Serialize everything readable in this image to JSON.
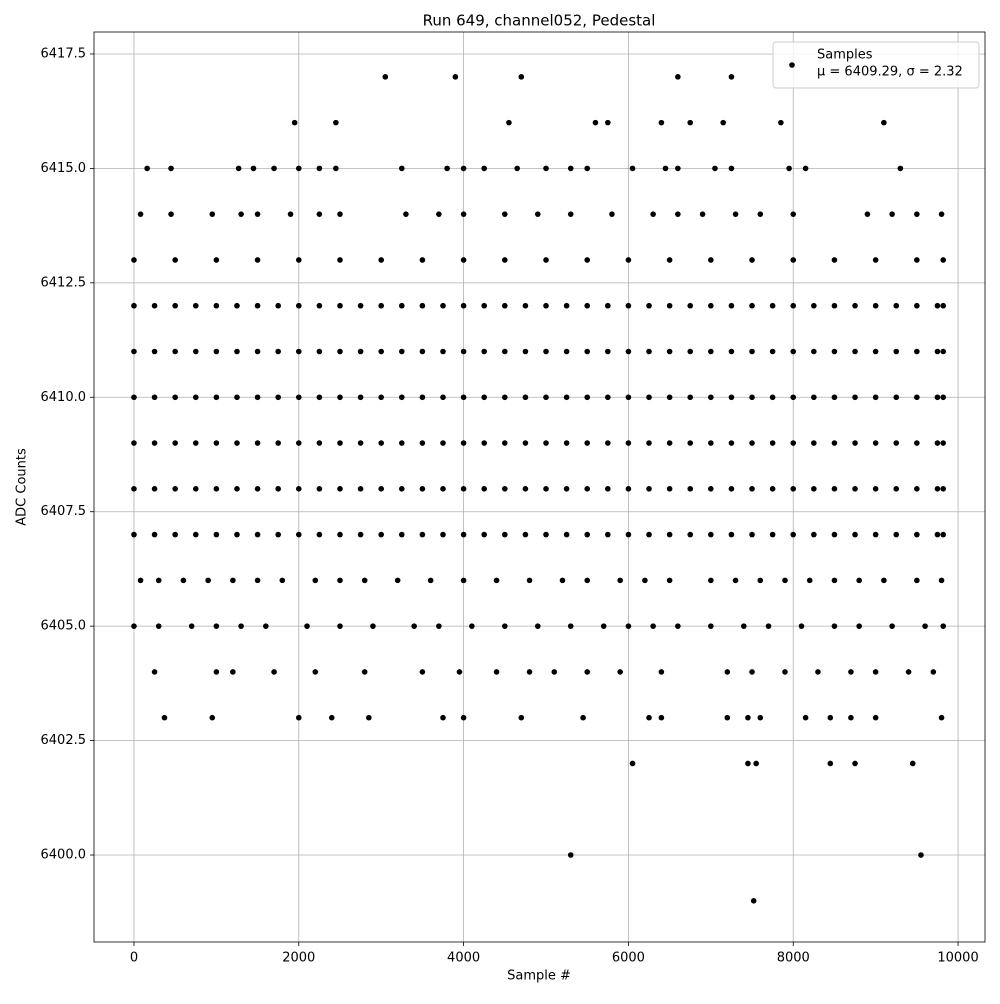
{
  "chart_data": {
    "type": "scatter",
    "title": "Run 649, channel052, Pedestal",
    "xlabel": "Sample #",
    "ylabel": "ADC Counts",
    "grid": true,
    "legend": "upper right",
    "legend_note": "μ = 6409.29, σ = 2.32",
    "xlim": [
      -485,
      10327
    ],
    "ylim": [
      6398.1,
      6417.98
    ],
    "xticks": [
      0,
      2000,
      4000,
      6000,
      8000,
      10000
    ],
    "yticks": [
      {
        "value": 6400,
        "label": "6400.0"
      },
      {
        "value": 6402.5,
        "label": "6402.5"
      },
      {
        "value": 6405,
        "label": "6405.0"
      },
      {
        "value": 6407.5,
        "label": "6407.5"
      },
      {
        "value": 6410,
        "label": "6410.0"
      },
      {
        "value": 6412.5,
        "label": "6412.5"
      },
      {
        "value": 6415,
        "label": "6415.0"
      },
      {
        "value": 6417.5,
        "label": "6417.5"
      }
    ],
    "series": [
      {
        "name": "Samples",
        "color": "#000000",
        "x": [
          0,
          250,
          500,
          750,
          1000,
          1250,
          1500,
          1750,
          2000,
          2250,
          2500,
          2750,
          3000,
          3250,
          3500,
          3750,
          4000,
          4250,
          4500,
          4750,
          5000,
          5250,
          5500,
          5750,
          6000,
          6250,
          6500,
          6750,
          7000,
          7250,
          7500,
          7750,
          8000,
          8250,
          8500,
          8750,
          9000,
          9250,
          9500,
          9750,
          9820,
          0,
          250,
          500,
          750,
          1000,
          1250,
          1500,
          1750,
          2000,
          2250,
          2500,
          2750,
          3000,
          3250,
          3500,
          3750,
          4000,
          4250,
          4500,
          4750,
          5000,
          5250,
          5500,
          5750,
          6000,
          6250,
          6500,
          6750,
          7000,
          7250,
          7500,
          7750,
          8000,
          8250,
          8500,
          8750,
          9000,
          9250,
          9500,
          9750,
          9820,
          0,
          250,
          500,
          750,
          1000,
          1250,
          1500,
          1750,
          2000,
          2250,
          2500,
          2750,
          3000,
          3250,
          3500,
          3750,
          4000,
          4250,
          4500,
          4750,
          5000,
          5250,
          5500,
          5750,
          6000,
          6250,
          6500,
          6750,
          7000,
          7250,
          7500,
          7750,
          8000,
          8250,
          8500,
          8750,
          9000,
          9250,
          9500,
          9750,
          9820,
          0,
          250,
          500,
          750,
          1000,
          1250,
          1500,
          1750,
          2000,
          2250,
          2500,
          2750,
          3000,
          3250,
          3500,
          3750,
          4000,
          4250,
          4500,
          4750,
          5000,
          5250,
          5500,
          5750,
          6000,
          6250,
          6500,
          6750,
          7000,
          7250,
          7500,
          7750,
          8000,
          8250,
          8500,
          8750,
          9000,
          9250,
          9500,
          9750,
          9820,
          0,
          250,
          500,
          750,
          1000,
          1250,
          1500,
          1750,
          2000,
          2250,
          2500,
          2750,
          3000,
          3250,
          3500,
          3750,
          4000,
          4250,
          4500,
          4750,
          5000,
          5250,
          5500,
          5750,
          6000,
          6250,
          6500,
          6750,
          7000,
          7250,
          7500,
          7750,
          8000,
          8250,
          8500,
          8750,
          9000,
          9250,
          9500,
          9750,
          9820,
          0,
          250,
          500,
          750,
          1000,
          1250,
          1500,
          1750,
          2000,
          2250,
          2500,
          2750,
          3000,
          3250,
          3500,
          3750,
          4000,
          4250,
          4500,
          4750,
          5000,
          5250,
          5500,
          5750,
          6000,
          6250,
          6500,
          6750,
          7000,
          7250,
          7500,
          7750,
          8000,
          8250,
          8500,
          8750,
          9000,
          9250,
          9500,
          9750,
          9820,
          0,
          500,
          1000,
          1500,
          2000,
          2500,
          3000,
          3500,
          4000,
          4500,
          5000,
          5500,
          6000,
          6500,
          7000,
          7500,
          8000,
          8500,
          9000,
          9500,
          9820,
          80,
          300,
          600,
          900,
          1200,
          1500,
          1800,
          2200,
          2500,
          2800,
          3200,
          3600,
          4000,
          4400,
          4800,
          5200,
          5500,
          5900,
          6200,
          6500,
          7000,
          7300,
          7600,
          7900,
          8200,
          8500,
          8800,
          9100,
          9500,
          9800,
          0,
          300,
          700,
          1000,
          1300,
          1600,
          2100,
          2500,
          2900,
          3400,
          3700,
          4100,
          4500,
          4900,
          5300,
          5700,
          6000,
          6300,
          6600,
          7000,
          7400,
          7700,
          8100,
          8500,
          8800,
          9200,
          9600,
          9820,
          80,
          450,
          950,
          1300,
          1500,
          1900,
          2250,
          2500,
          3300,
          3700,
          4000,
          4500,
          4900,
          5300,
          5800,
          6300,
          6600,
          6900,
          7300,
          7600,
          8000,
          8900,
          9200,
          9500,
          9800,
          250,
          1000,
          1200,
          1700,
          2200,
          2800,
          3500,
          3950,
          4400,
          4800,
          5100,
          5500,
          5900,
          6400,
          7200,
          7500,
          7900,
          8300,
          8700,
          9000,
          9400,
          9700,
          370,
          950,
          2000,
          2400,
          2850,
          3750,
          4000,
          4700,
          5450,
          6250,
          6400,
          7200,
          7450,
          7600,
          8150,
          8450,
          8700,
          9000,
          9800,
          160,
          450,
          1270,
          1450,
          1700,
          2000,
          2250,
          2450,
          3250,
          3800,
          4000,
          4250,
          4650,
          5000,
          5300,
          5500,
          6050,
          6450,
          6600,
          7050,
          7250,
          7950,
          8150,
          9300,
          1950,
          2450,
          4550,
          5600,
          5750,
          6400,
          6750,
          7150,
          7850,
          9100,
          3050,
          3900,
          4700,
          6600,
          7250,
          6050,
          7450,
          7550,
          8450,
          8750,
          9450,
          5300,
          9550,
          7520
        ],
        "values": [
          6412,
          6412,
          6412,
          6412,
          6412,
          6412,
          6412,
          6412,
          6412,
          6412,
          6412,
          6412,
          6412,
          6412,
          6412,
          6412,
          6412,
          6412,
          6412,
          6412,
          6412,
          6412,
          6412,
          6412,
          6412,
          6412,
          6412,
          6412,
          6412,
          6412,
          6412,
          6412,
          6412,
          6412,
          6412,
          6412,
          6412,
          6412,
          6412,
          6412,
          6412,
          6411,
          6411,
          6411,
          6411,
          6411,
          6411,
          6411,
          6411,
          6411,
          6411,
          6411,
          6411,
          6411,
          6411,
          6411,
          6411,
          6411,
          6411,
          6411,
          6411,
          6411,
          6411,
          6411,
          6411,
          6411,
          6411,
          6411,
          6411,
          6411,
          6411,
          6411,
          6411,
          6411,
          6411,
          6411,
          6411,
          6411,
          6411,
          6411,
          6411,
          6411,
          6410,
          6410,
          6410,
          6410,
          6410,
          6410,
          6410,
          6410,
          6410,
          6410,
          6410,
          6410,
          6410,
          6410,
          6410,
          6410,
          6410,
          6410,
          6410,
          6410,
          6410,
          6410,
          6410,
          6410,
          6410,
          6410,
          6410,
          6410,
          6410,
          6410,
          6410,
          6410,
          6410,
          6410,
          6410,
          6410,
          6410,
          6410,
          6410,
          6410,
          6410,
          6409,
          6409,
          6409,
          6409,
          6409,
          6409,
          6409,
          6409,
          6409,
          6409,
          6409,
          6409,
          6409,
          6409,
          6409,
          6409,
          6409,
          6409,
          6409,
          6409,
          6409,
          6409,
          6409,
          6409,
          6409,
          6409,
          6409,
          6409,
          6409,
          6409,
          6409,
          6409,
          6409,
          6409,
          6409,
          6409,
          6409,
          6409,
          6409,
          6409,
          6409,
          6408,
          6408,
          6408,
          6408,
          6408,
          6408,
          6408,
          6408,
          6408,
          6408,
          6408,
          6408,
          6408,
          6408,
          6408,
          6408,
          6408,
          6408,
          6408,
          6408,
          6408,
          6408,
          6408,
          6408,
          6408,
          6408,
          6408,
          6408,
          6408,
          6408,
          6408,
          6408,
          6408,
          6408,
          6408,
          6408,
          6408,
          6408,
          6408,
          6408,
          6408,
          6407,
          6407,
          6407,
          6407,
          6407,
          6407,
          6407,
          6407,
          6407,
          6407,
          6407,
          6407,
          6407,
          6407,
          6407,
          6407,
          6407,
          6407,
          6407,
          6407,
          6407,
          6407,
          6407,
          6407,
          6407,
          6407,
          6407,
          6407,
          6407,
          6407,
          6407,
          6407,
          6407,
          6407,
          6407,
          6407,
          6407,
          6407,
          6407,
          6407,
          6407,
          6413,
          6413,
          6413,
          6413,
          6413,
          6413,
          6413,
          6413,
          6413,
          6413,
          6413,
          6413,
          6413,
          6413,
          6413,
          6413,
          6413,
          6413,
          6413,
          6413,
          6413,
          6406,
          6406,
          6406,
          6406,
          6406,
          6406,
          6406,
          6406,
          6406,
          6406,
          6406,
          6406,
          6406,
          6406,
          6406,
          6406,
          6406,
          6406,
          6406,
          6406,
          6406,
          6406,
          6406,
          6406,
          6406,
          6406,
          6406,
          6406,
          6406,
          6406,
          6405,
          6405,
          6405,
          6405,
          6405,
          6405,
          6405,
          6405,
          6405,
          6405,
          6405,
          6405,
          6405,
          6405,
          6405,
          6405,
          6405,
          6405,
          6405,
          6405,
          6405,
          6405,
          6405,
          6405,
          6405,
          6405,
          6405,
          6405,
          6414,
          6414,
          6414,
          6414,
          6414,
          6414,
          6414,
          6414,
          6414,
          6414,
          6414,
          6414,
          6414,
          6414,
          6414,
          6414,
          6414,
          6414,
          6414,
          6414,
          6414,
          6414,
          6414,
          6414,
          6414,
          6404,
          6404,
          6404,
          6404,
          6404,
          6404,
          6404,
          6404,
          6404,
          6404,
          6404,
          6404,
          6404,
          6404,
          6404,
          6404,
          6404,
          6404,
          6404,
          6404,
          6404,
          6404,
          6403,
          6403,
          6403,
          6403,
          6403,
          6403,
          6403,
          6403,
          6403,
          6403,
          6403,
          6403,
          6403,
          6403,
          6403,
          6403,
          6403,
          6403,
          6403,
          6415,
          6415,
          6415,
          6415,
          6415,
          6415,
          6415,
          6415,
          6415,
          6415,
          6415,
          6415,
          6415,
          6415,
          6415,
          6415,
          6415,
          6415,
          6415,
          6415,
          6415,
          6415,
          6415,
          6415,
          6416,
          6416,
          6416,
          6416,
          6416,
          6416,
          6416,
          6416,
          6416,
          6416,
          6417,
          6417,
          6417,
          6417,
          6417,
          6402,
          6402,
          6402,
          6402,
          6402,
          6402,
          6400,
          6400,
          6399
        ]
      }
    ]
  }
}
